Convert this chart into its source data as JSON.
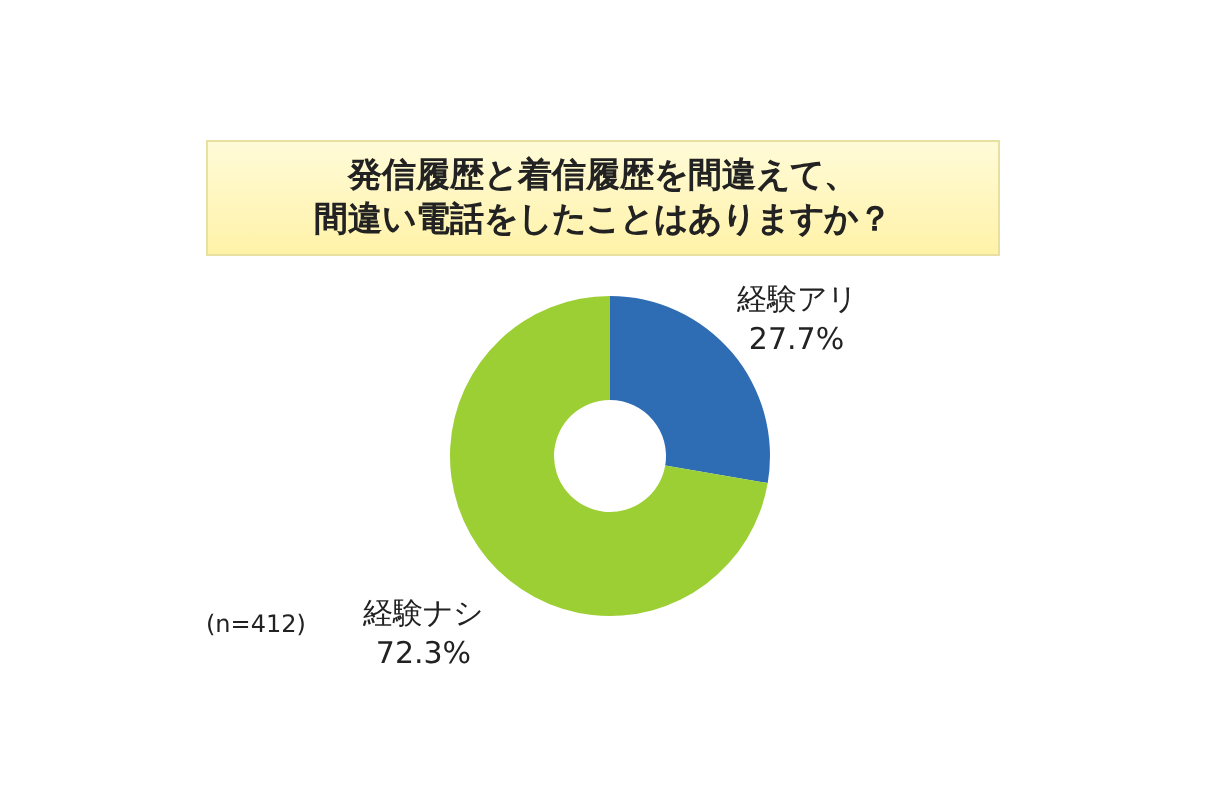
{
  "chart_data": {
    "type": "donut",
    "title": "発信履歴と着信履歴を間違えて、間違い電話をしたことはありますか？",
    "categories": [
      "経験アリ",
      "経験ナシ"
    ],
    "values": [
      27.7,
      72.3
    ],
    "value_labels": [
      "27.7%",
      "72.3%"
    ],
    "colors": [
      "#2e6db4",
      "#9ccf34"
    ],
    "annotations": [
      "(n=412)"
    ],
    "legend": false
  }
}
